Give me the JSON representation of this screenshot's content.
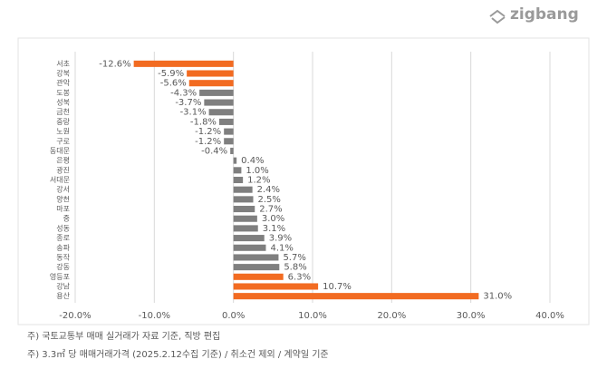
{
  "logo": "zigbang",
  "chart_data": {
    "type": "bar",
    "orientation": "horizontal",
    "categories": [
      "서초",
      "강북",
      "관악",
      "도봉",
      "성북",
      "금천",
      "중랑",
      "노원",
      "구로",
      "동대문",
      "은평",
      "광진",
      "서대문",
      "강서",
      "양천",
      "마포",
      "중",
      "성동",
      "종로",
      "송파",
      "동작",
      "강동",
      "영등포",
      "강남",
      "용산"
    ],
    "values": [
      -12.6,
      -5.9,
      -5.6,
      -4.3,
      -3.7,
      -3.1,
      -1.8,
      -1.2,
      -1.2,
      -0.4,
      0.4,
      1.0,
      1.2,
      2.4,
      2.5,
      2.7,
      3.0,
      3.1,
      3.9,
      4.1,
      5.7,
      5.8,
      6.3,
      10.7,
      31.0
    ],
    "value_labels": [
      "-12.6%",
      "-5.9%",
      "-5.6%",
      "-4.3%",
      "-3.7%",
      "-3.1%",
      "-1.8%",
      "-1.2%",
      "-1.2%",
      "-0.4%",
      "0.4%",
      "1.0%",
      "1.2%",
      "2.4%",
      "2.5%",
      "2.7%",
      "3.0%",
      "3.1%",
      "3.9%",
      "4.1%",
      "5.7%",
      "5.8%",
      "6.3%",
      "10.7%",
      "31.0%"
    ],
    "colors": [
      "#f26b21",
      "#f26b21",
      "#f26b21",
      "#7f7f7f",
      "#7f7f7f",
      "#7f7f7f",
      "#7f7f7f",
      "#7f7f7f",
      "#7f7f7f",
      "#7f7f7f",
      "#7f7f7f",
      "#7f7f7f",
      "#7f7f7f",
      "#7f7f7f",
      "#7f7f7f",
      "#7f7f7f",
      "#7f7f7f",
      "#7f7f7f",
      "#7f7f7f",
      "#7f7f7f",
      "#7f7f7f",
      "#7f7f7f",
      "#f26b21",
      "#f26b21",
      "#f26b21"
    ],
    "xlim": [
      -20,
      40
    ],
    "xticks": [
      {
        "value": -20,
        "label": "-20.0%"
      },
      {
        "value": -10,
        "label": "-10.0%"
      },
      {
        "value": 0,
        "label": "0.0%"
      },
      {
        "value": 10,
        "label": "10.0%"
      },
      {
        "value": 20,
        "label": "20.0%"
      },
      {
        "value": 30,
        "label": "30.0%"
      },
      {
        "value": 40,
        "label": "40.0%"
      }
    ],
    "grid": true
  },
  "notes": [
    "주) 국토교통부 매매 실거래가 자료 기준, 직방 편집",
    "주) 3.3㎡ 당 매매거래가격 (2025.2.12수집 기준) / 취소건 제외 / 계약일 기준"
  ]
}
